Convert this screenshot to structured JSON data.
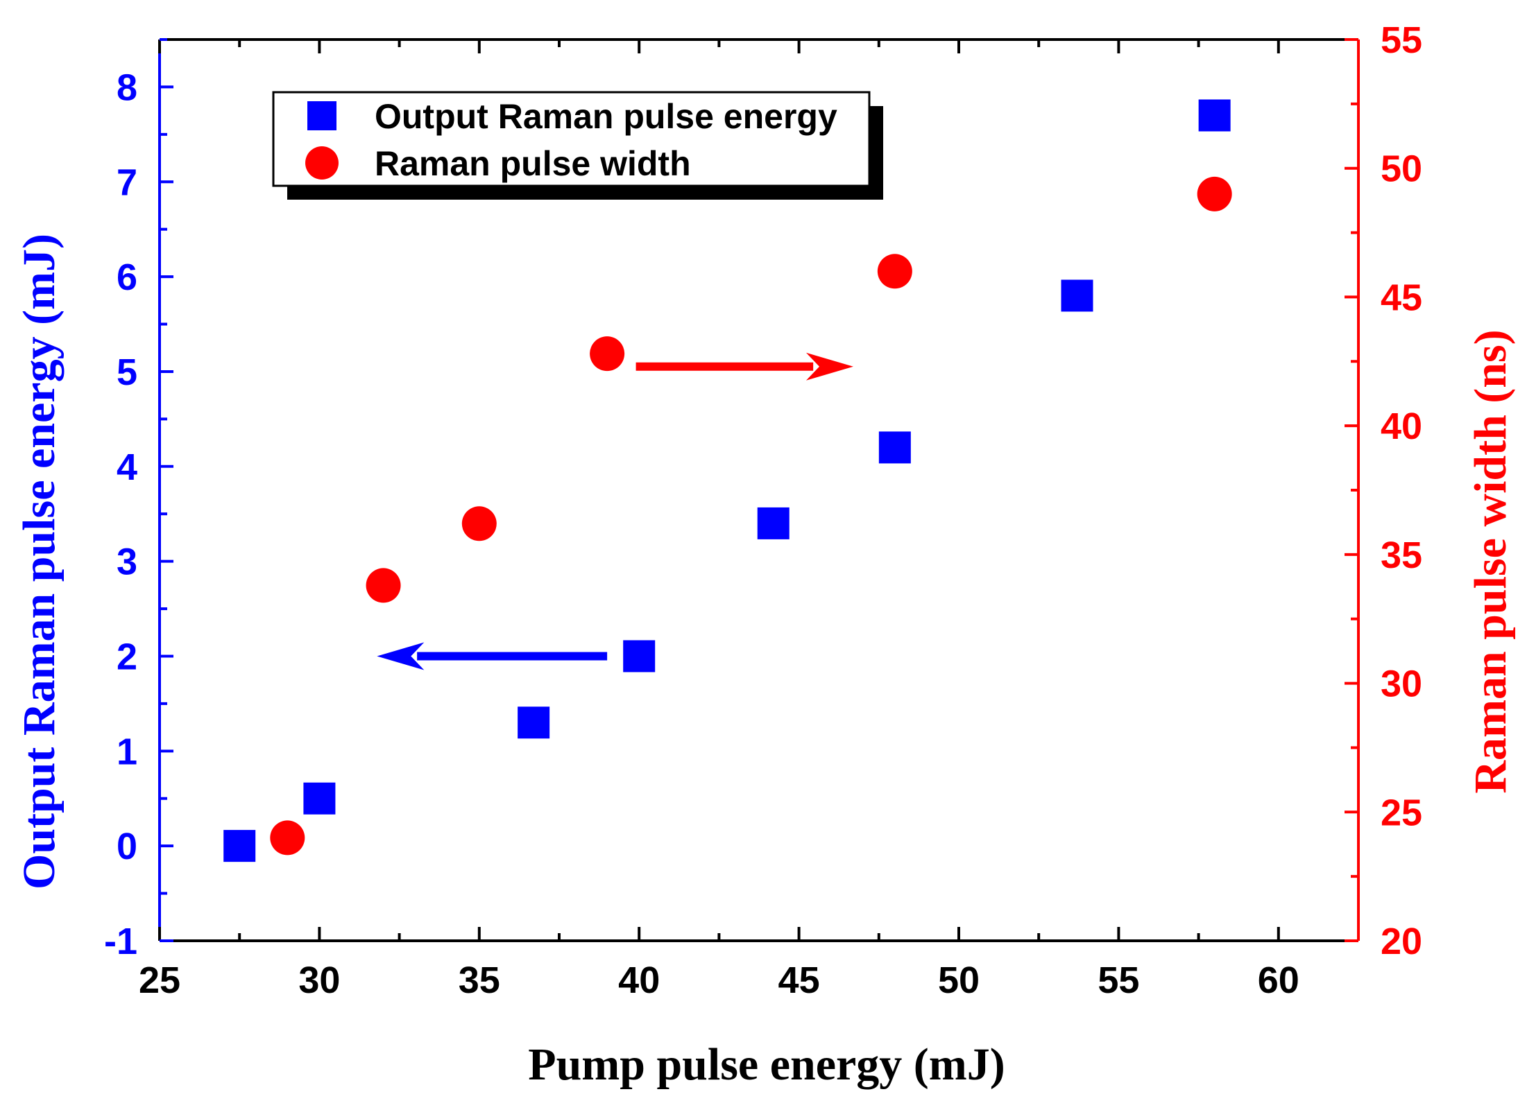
{
  "chart_data": {
    "type": "scatter",
    "title": "",
    "xlabel": "Pump pulse energy (mJ)",
    "ylabel_left": "Output Raman pulse energy (mJ)",
    "ylabel_right": "Raman pulse width (ns)",
    "xlim": [
      25,
      62.5
    ],
    "ylim_left": [
      -1,
      8.5
    ],
    "ylim_right": [
      20,
      55
    ],
    "x_ticks": [
      "25",
      "30",
      "35",
      "40",
      "45",
      "50",
      "55",
      "60"
    ],
    "y_left_ticks": [
      "-1",
      "0",
      "1",
      "2",
      "3",
      "4",
      "5",
      "6",
      "7",
      "8"
    ],
    "y_right_ticks": [
      "20",
      "25",
      "30",
      "35",
      "40",
      "45",
      "50",
      "55"
    ],
    "legend_position": "top-left",
    "series": [
      {
        "name": "Output Raman pulse energy",
        "axis": "left",
        "marker": "square",
        "color": "#0000ff",
        "x": [
          27.5,
          30.0,
          36.7,
          40.0,
          44.2,
          48.0,
          53.7,
          58.0
        ],
        "y": [
          0.0,
          0.5,
          1.3,
          2.0,
          3.4,
          4.2,
          5.8,
          7.7
        ]
      },
      {
        "name": "Raman pulse width",
        "axis": "right",
        "marker": "circle",
        "color": "#ff0000",
        "x": [
          29.0,
          32.0,
          35.0,
          39.0,
          48.0,
          58.0
        ],
        "y": [
          24.0,
          33.8,
          36.2,
          42.8,
          46.0,
          49.0
        ]
      }
    ],
    "annotations": [
      {
        "type": "arrow",
        "direction": "right",
        "points_to": "right-axis",
        "color": "#ff0000",
        "x_from": 39.9,
        "x_to": 46.7,
        "y_right": 42.3
      },
      {
        "type": "arrow",
        "direction": "left",
        "points_to": "left-axis",
        "color": "#0000ff",
        "x_from": 39.0,
        "x_to": 31.8,
        "y_left": 2.0
      }
    ],
    "colors": {
      "left_axis": "#0000ff",
      "right_axis": "#ff0000",
      "frame": "#000000"
    }
  }
}
